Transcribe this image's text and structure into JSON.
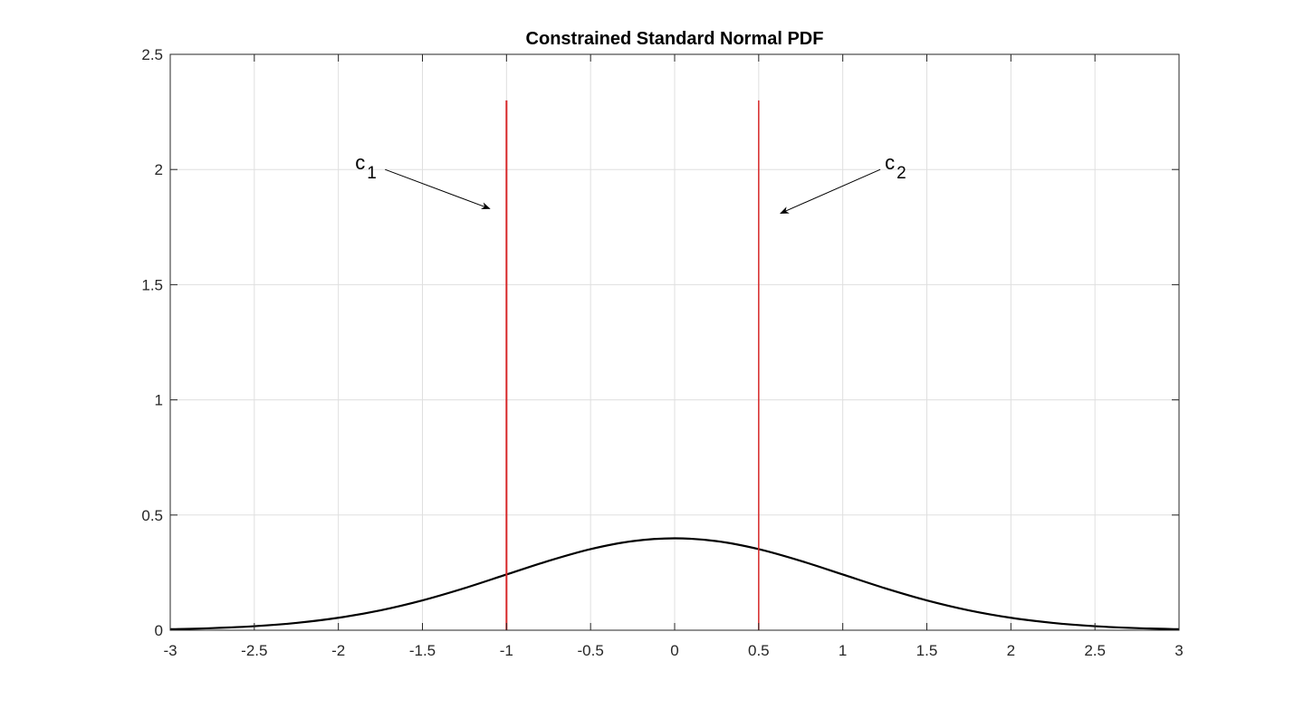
{
  "chart_data": {
    "type": "line",
    "title": "Constrained Standard Normal PDF",
    "xlabel": "",
    "ylabel": "",
    "xlim": [
      -3,
      3
    ],
    "ylim": [
      0,
      2.5
    ],
    "grid": true,
    "x_ticks": [
      "-3",
      "-2.5",
      "-2",
      "-1.5",
      "-1",
      "-0.5",
      "0",
      "0.5",
      "1",
      "1.5",
      "2",
      "2.5",
      "3"
    ],
    "y_ticks": [
      "0",
      "0.5",
      "1",
      "1.5",
      "2",
      "2.5"
    ],
    "series": [
      {
        "color": "#000000",
        "style": "solid",
        "x": [
          -3,
          -2.75,
          -2.5,
          -2.25,
          -2,
          -1.75,
          -1.5,
          -1.25,
          -1,
          -0.75,
          -0.5,
          -0.25,
          0,
          0.25,
          0.5,
          0.75,
          1,
          1.25,
          1.5,
          1.75,
          2,
          2.25,
          2.5,
          2.75,
          3
        ],
        "y": [
          0.0044,
          0.0091,
          0.0175,
          0.0317,
          0.054,
          0.0863,
          0.1295,
          0.1826,
          0.242,
          0.3011,
          0.3521,
          0.3867,
          0.3989,
          0.3867,
          0.3521,
          0.3011,
          0.242,
          0.1826,
          0.1295,
          0.0863,
          0.054,
          0.0317,
          0.0175,
          0.0091,
          0.0044
        ]
      }
    ],
    "constraint_lines": [
      {
        "x": -1,
        "y_range": [
          0,
          2.3
        ],
        "color": "#d62728"
      },
      {
        "x": 0.5,
        "y_range": [
          0,
          2.3
        ],
        "color": "#d62728"
      }
    ],
    "annotations": [
      {
        "text": "c",
        "subscript": "1",
        "text_at": [
          -1.9,
          2.0
        ],
        "arrow_to": [
          -1.1,
          1.83
        ]
      },
      {
        "text": "c",
        "subscript": "2",
        "text_at": [
          1.25,
          2.0
        ],
        "arrow_to": [
          0.63,
          1.81
        ]
      }
    ]
  }
}
